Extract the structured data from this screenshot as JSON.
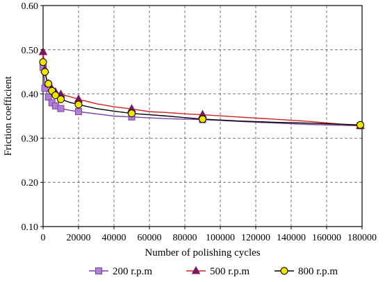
{
  "chart_data": {
    "type": "line",
    "title": "",
    "xlabel": "Number of polishing cycles",
    "ylabel": "Friction coefficient",
    "xlim": [
      0,
      180000
    ],
    "ylim": [
      0.1,
      0.6
    ],
    "x_ticks": [
      0,
      20000,
      40000,
      60000,
      80000,
      100000,
      120000,
      140000,
      160000,
      180000
    ],
    "x_tick_labels": [
      "0",
      "20000",
      "40000",
      "60000",
      "80000",
      "100000",
      "120000",
      "140000",
      "160000",
      "180000"
    ],
    "y_ticks": [
      0.1,
      0.2,
      0.3,
      0.4,
      0.5,
      0.6
    ],
    "y_tick_labels": [
      "0.10",
      "0.20",
      "0.30",
      "0.40",
      "0.50",
      "0.60"
    ],
    "grid": true,
    "legend_position": "bottom",
    "series": [
      {
        "name": "200 r.p.m",
        "color": "#7B3FA8",
        "marker": "square",
        "marker_fill": "#B080D0",
        "line_points": [
          [
            0,
            0.46
          ],
          [
            500,
            0.448
          ],
          [
            1000,
            0.413
          ],
          [
            2000,
            0.403
          ],
          [
            3000,
            0.393
          ],
          [
            4000,
            0.386
          ],
          [
            5000,
            0.38
          ],
          [
            6000,
            0.376
          ],
          [
            7000,
            0.373
          ],
          [
            8000,
            0.371
          ],
          [
            10000,
            0.367
          ],
          [
            15000,
            0.363
          ],
          [
            20000,
            0.36
          ],
          [
            30000,
            0.355
          ],
          [
            40000,
            0.35
          ],
          [
            50000,
            0.348
          ],
          [
            70000,
            0.344
          ],
          [
            90000,
            0.342
          ],
          [
            120000,
            0.336
          ],
          [
            150000,
            0.331
          ],
          [
            179000,
            0.328
          ]
        ],
        "markers": [
          [
            0,
            0.46
          ],
          [
            1000,
            0.413
          ],
          [
            3000,
            0.393
          ],
          [
            5000,
            0.38
          ],
          [
            7000,
            0.373
          ],
          [
            10000,
            0.367
          ],
          [
            20000,
            0.36
          ],
          [
            50000,
            0.348
          ],
          [
            90000,
            0.342
          ],
          [
            179000,
            0.328
          ]
        ]
      },
      {
        "name": "500 r.p.m",
        "color": "#D42020",
        "marker": "triangle",
        "marker_fill": "#7A1A5A",
        "line_points": [
          [
            0,
            0.495
          ],
          [
            1000,
            0.455
          ],
          [
            2000,
            0.432
          ],
          [
            3000,
            0.423
          ],
          [
            4000,
            0.416
          ],
          [
            5000,
            0.411
          ],
          [
            6000,
            0.407
          ],
          [
            7000,
            0.404
          ],
          [
            8000,
            0.402
          ],
          [
            10000,
            0.399
          ],
          [
            15000,
            0.394
          ],
          [
            20000,
            0.388
          ],
          [
            30000,
            0.378
          ],
          [
            40000,
            0.371
          ],
          [
            50000,
            0.366
          ],
          [
            60000,
            0.36
          ],
          [
            70000,
            0.358
          ],
          [
            80000,
            0.355
          ],
          [
            90000,
            0.353
          ],
          [
            110000,
            0.348
          ],
          [
            130000,
            0.343
          ],
          [
            150000,
            0.338
          ],
          [
            179000,
            0.328
          ]
        ],
        "markers": [
          [
            0,
            0.495
          ],
          [
            1000,
            0.455
          ],
          [
            3000,
            0.423
          ],
          [
            5000,
            0.411
          ],
          [
            7000,
            0.404
          ],
          [
            10000,
            0.399
          ],
          [
            20000,
            0.388
          ],
          [
            50000,
            0.366
          ],
          [
            90000,
            0.353
          ],
          [
            179000,
            0.328
          ]
        ]
      },
      {
        "name": "800 r.p.m",
        "color": "#000000",
        "marker": "circle",
        "marker_fill": "#F2E600",
        "line_points": [
          [
            0,
            0.472
          ],
          [
            1000,
            0.45
          ],
          [
            2000,
            0.433
          ],
          [
            3000,
            0.423
          ],
          [
            4000,
            0.414
          ],
          [
            5000,
            0.407
          ],
          [
            6000,
            0.401
          ],
          [
            7000,
            0.397
          ],
          [
            8000,
            0.393
          ],
          [
            10000,
            0.388
          ],
          [
            15000,
            0.381
          ],
          [
            20000,
            0.376
          ],
          [
            30000,
            0.367
          ],
          [
            40000,
            0.361
          ],
          [
            50000,
            0.356
          ],
          [
            70000,
            0.35
          ],
          [
            90000,
            0.343
          ],
          [
            110000,
            0.339
          ],
          [
            130000,
            0.336
          ],
          [
            150000,
            0.334
          ],
          [
            179000,
            0.33
          ]
        ],
        "markers": [
          [
            0,
            0.472
          ],
          [
            1000,
            0.45
          ],
          [
            3000,
            0.423
          ],
          [
            5000,
            0.407
          ],
          [
            7000,
            0.397
          ],
          [
            10000,
            0.388
          ],
          [
            20000,
            0.376
          ],
          [
            50000,
            0.356
          ],
          [
            90000,
            0.343
          ],
          [
            179000,
            0.33
          ]
        ]
      }
    ]
  }
}
